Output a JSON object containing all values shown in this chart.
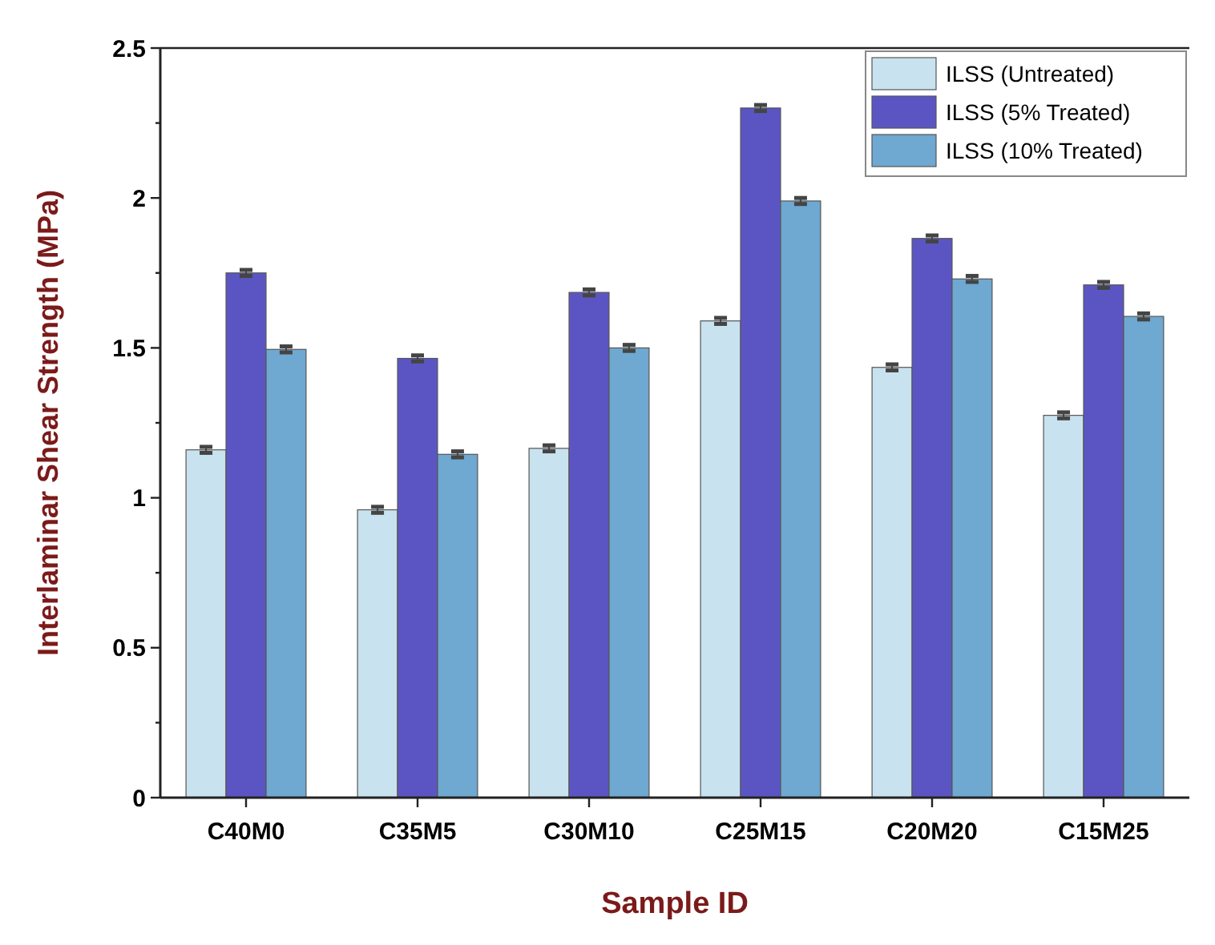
{
  "chart_data": {
    "type": "bar",
    "xlabel": "Sample ID",
    "ylabel": "Interlaminar Shear Strength  (MPa)",
    "categories": [
      "C40M0",
      "C35M5",
      "C30M10",
      "C25M15",
      "C20M20",
      "C15M25"
    ],
    "series": [
      {
        "name": "ILSS (Untreated)",
        "color": "#c9e2ef",
        "values": [
          1.16,
          0.96,
          1.165,
          1.59,
          1.435,
          1.275
        ],
        "errors": [
          0.01,
          0.01,
          0.01,
          0.01,
          0.01,
          0.01
        ]
      },
      {
        "name": "ILSS (5% Treated)",
        "color": "#5b55c4",
        "values": [
          1.75,
          1.465,
          1.685,
          2.3,
          1.865,
          1.71
        ],
        "errors": [
          0.01,
          0.01,
          0.01,
          0.01,
          0.01,
          0.01
        ]
      },
      {
        "name": "ILSS (10% Treated)",
        "color": "#6fa8d0",
        "values": [
          1.495,
          1.145,
          1.5,
          1.99,
          1.73,
          1.605
        ],
        "errors": [
          0.01,
          0.01,
          0.01,
          0.01,
          0.01,
          0.01
        ]
      }
    ],
    "ylim": [
      0,
      2.5
    ],
    "yticks": [
      0,
      {
        "value": 0.25,
        "label": null
      },
      0.5,
      {
        "value": 0.75,
        "label": null
      },
      1,
      {
        "value": 1.25,
        "label": null
      },
      1.5,
      {
        "value": 1.75,
        "label": null
      },
      2,
      {
        "value": 2.25,
        "label": null
      },
      2.5
    ],
    "legend": "top right",
    "grid": false
  }
}
